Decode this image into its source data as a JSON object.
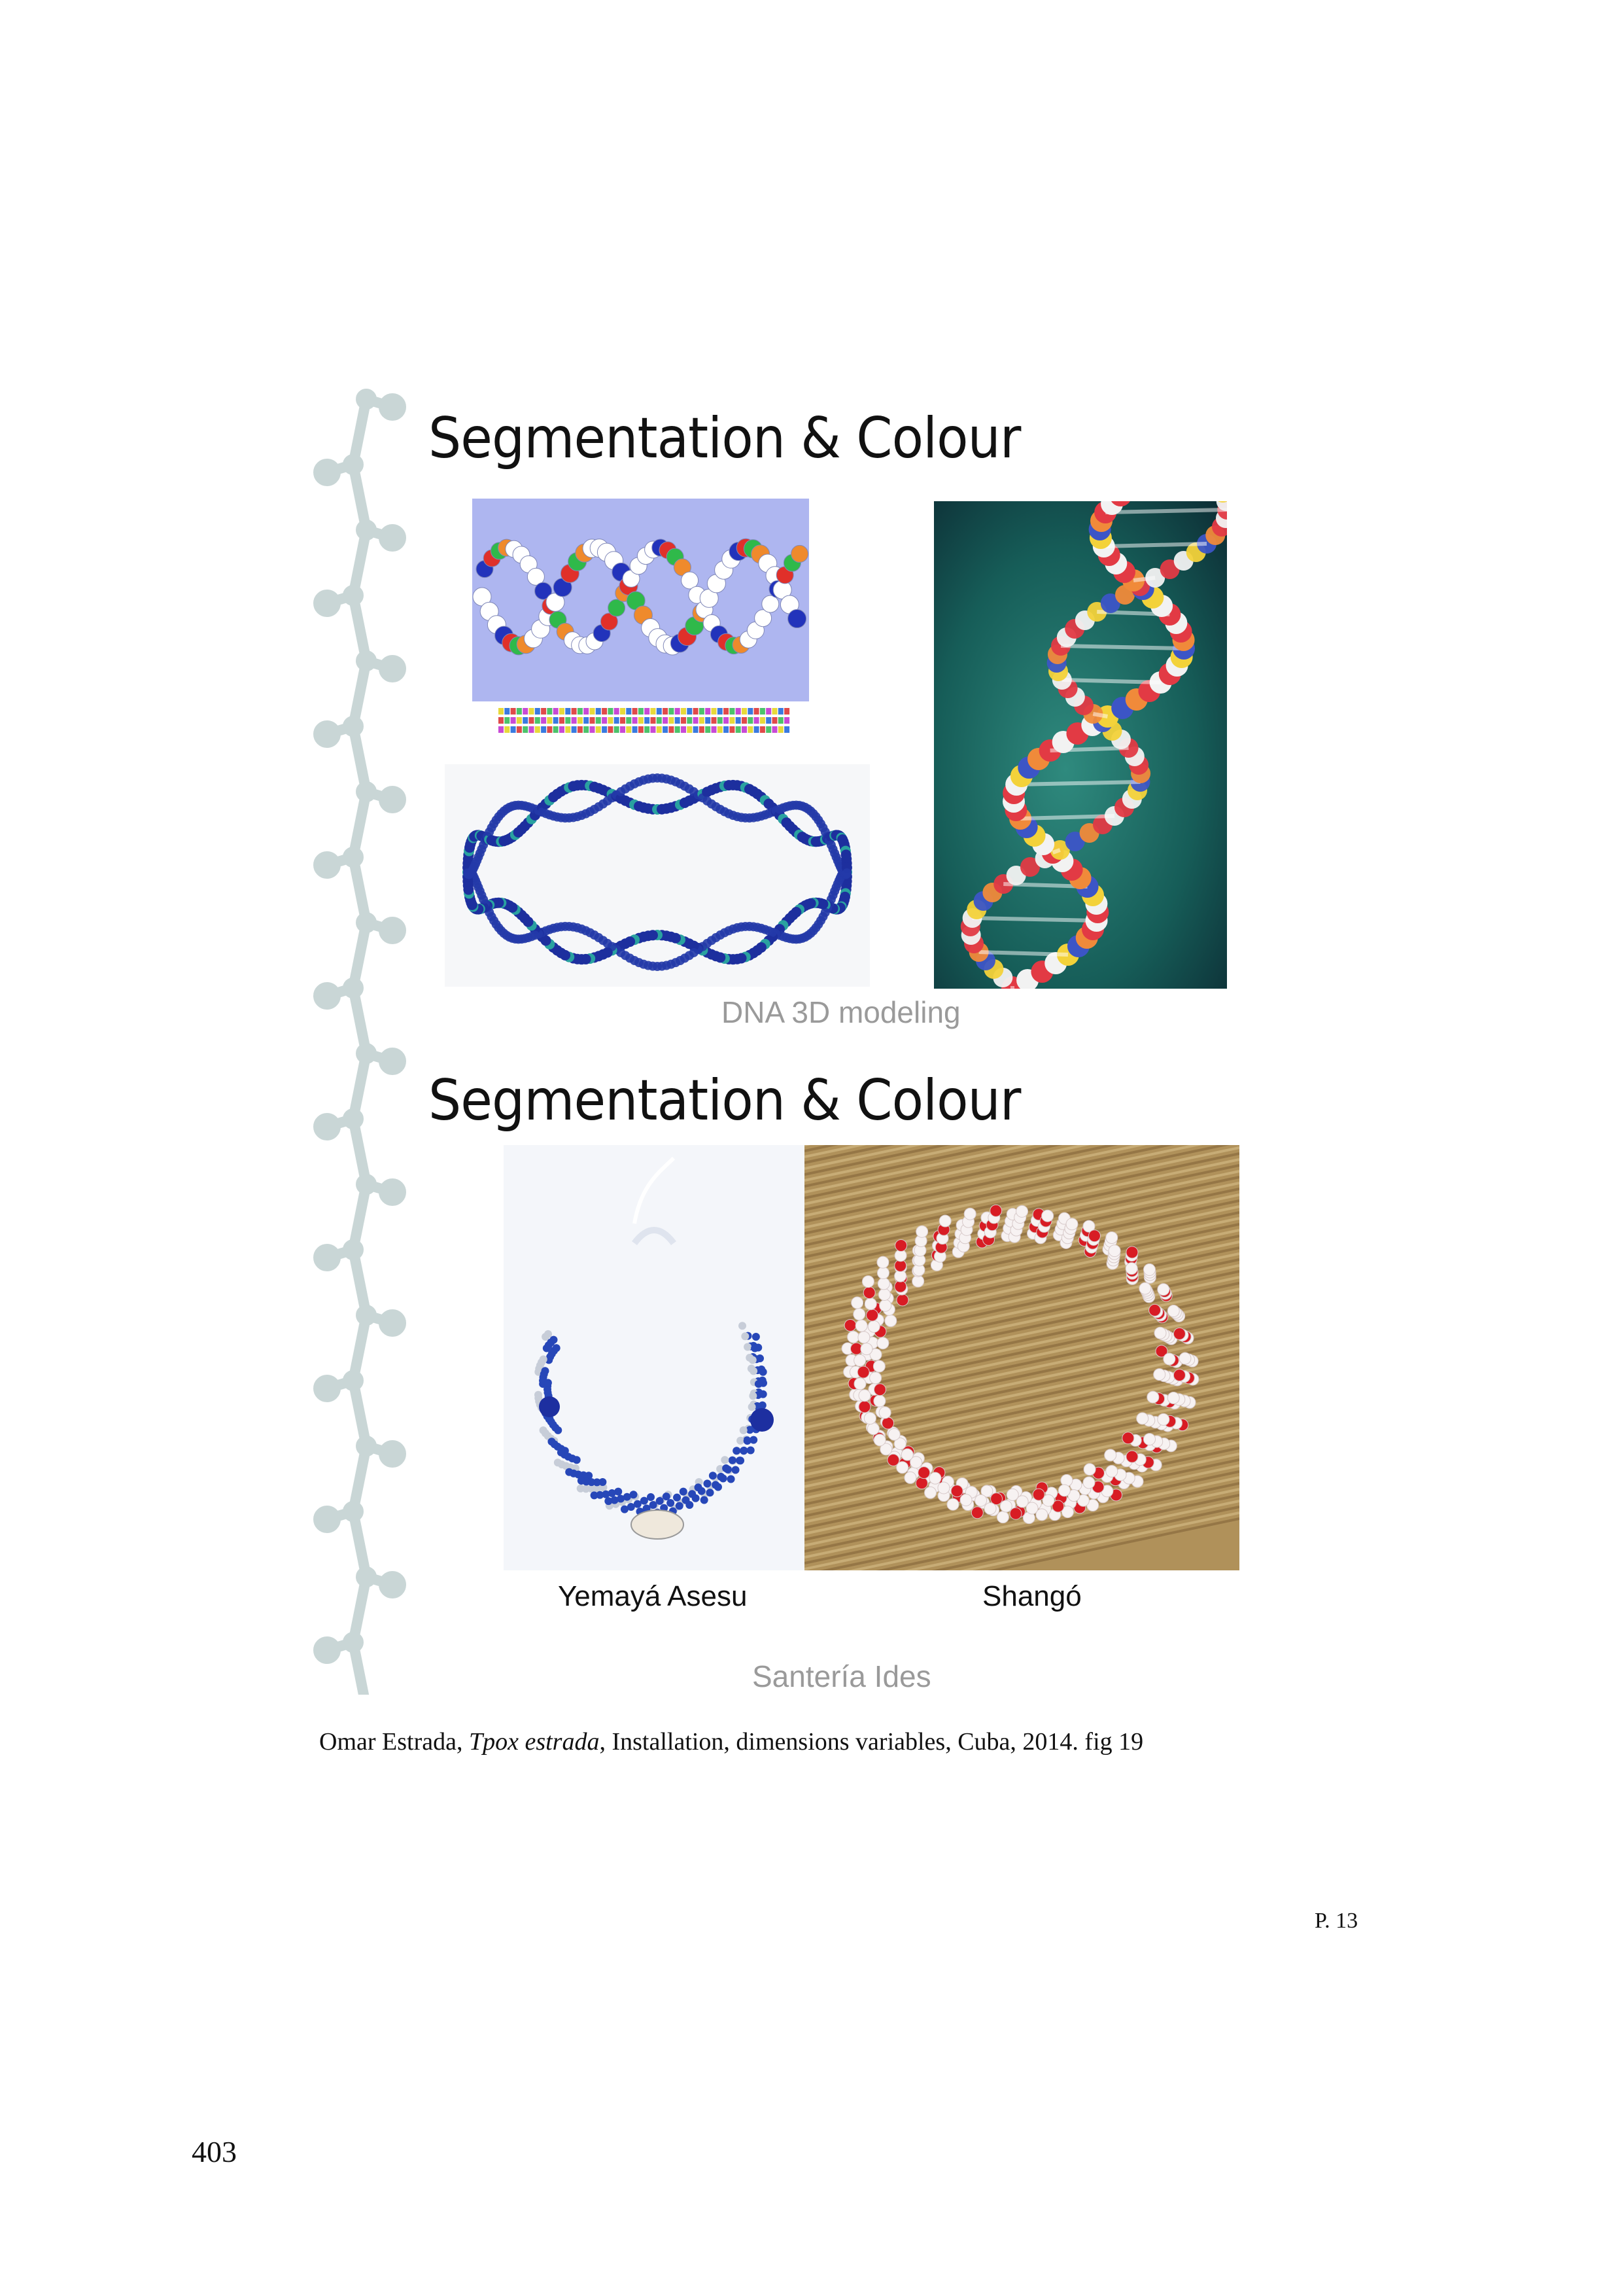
{
  "slide1": {
    "heading": "Segmentation & Colour",
    "caption": "DNA 3D modeling"
  },
  "slide2": {
    "heading": "Segmentation & Colour",
    "label_left": "Yemayá Asesu",
    "label_right": "Shangó",
    "caption": "Santería Ides"
  },
  "figure_caption": {
    "author": "Omar Estrada, ",
    "title": "Tpox estrada",
    "details": ", Installation, dimensions variables, Cuba, 2014. fig 19"
  },
  "slide_page": "P. 13",
  "page_number": "403",
  "colors": {
    "chain": "#c9d6d6",
    "dna_bg": "#aeb6f0",
    "bead_blue": "#2233aa",
    "bead_red": "#d8222c",
    "teal_bg": "#1e6e66"
  }
}
